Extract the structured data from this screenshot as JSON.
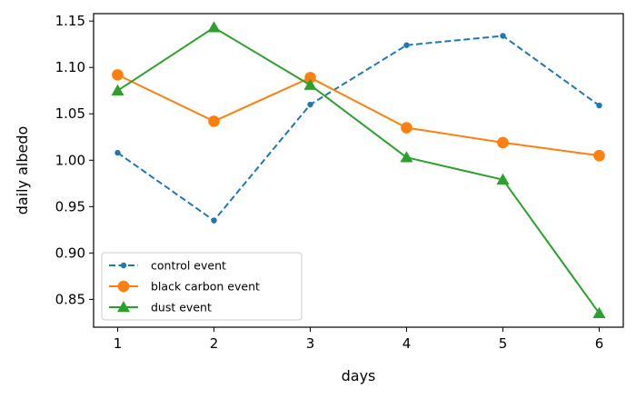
{
  "chart_data": {
    "type": "line",
    "title": "",
    "xlabel": "days",
    "ylabel": "daily albedo",
    "x": [
      1,
      2,
      3,
      4,
      5,
      6
    ],
    "xlim": [
      0.75,
      6.25
    ],
    "ylim": [
      0.82,
      1.158
    ],
    "xticks": [
      "1",
      "2",
      "3",
      "4",
      "5",
      "6"
    ],
    "yticks": [
      "0.85",
      "0.90",
      "0.95",
      "1.00",
      "1.05",
      "1.10",
      "1.15"
    ],
    "grid": false,
    "legend_position": "lower-left",
    "series": [
      {
        "name": "control event",
        "values": [
          1.008,
          0.935,
          1.06,
          1.124,
          1.134,
          1.059
        ],
        "color": "#1f77b4",
        "linestyle": "dashed",
        "marker": "point"
      },
      {
        "name": "black carbon event",
        "values": [
          1.092,
          1.042,
          1.089,
          1.035,
          1.019,
          1.005
        ],
        "color": "#ff7f0e",
        "linestyle": "solid",
        "marker": "circle"
      },
      {
        "name": "dust event",
        "values": [
          1.075,
          1.143,
          1.081,
          1.003,
          0.979,
          0.835
        ],
        "color": "#2ca02c",
        "linestyle": "solid",
        "marker": "triangle"
      }
    ]
  }
}
